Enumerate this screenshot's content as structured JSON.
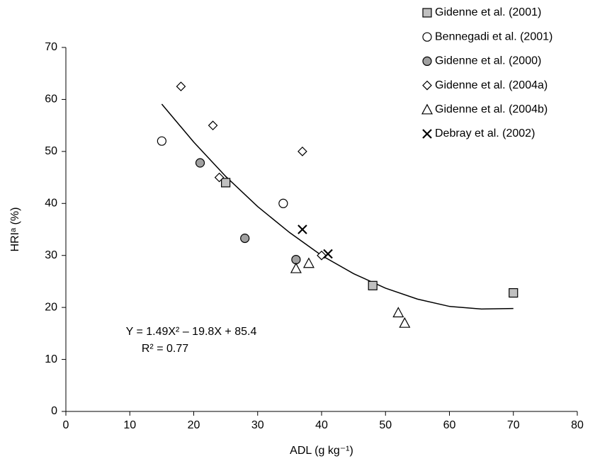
{
  "chart_data": {
    "type": "scatter",
    "xlabel": "ADL (g kg⁻¹)",
    "ylabel": "HRIᵃ (%)",
    "xlim": [
      0,
      80
    ],
    "xticks": [
      0,
      10,
      20,
      30,
      40,
      50,
      60,
      70,
      80
    ],
    "ylim": [
      0,
      70
    ],
    "yticks": [
      0,
      10,
      20,
      30,
      40,
      50,
      60,
      70
    ],
    "grid": false,
    "legend": "upper right",
    "series": [
      {
        "name": "Gidenne et al. (2001)",
        "marker": "square",
        "color": "#c0c0c0",
        "x": [
          25,
          48,
          70
        ],
        "values": [
          44,
          24.2,
          22.8
        ]
      },
      {
        "name": "Bennegadi et al. (2001)",
        "marker": "circle",
        "color": "#ffffff",
        "x": [
          15,
          34
        ],
        "values": [
          52,
          40
        ]
      },
      {
        "name": "Gidenne et al. (2000)",
        "marker": "circle",
        "color": "#a0a0a0",
        "x": [
          21,
          28,
          36
        ],
        "values": [
          47.8,
          33.3,
          29.2
        ]
      },
      {
        "name": "Gidenne et al. (2004a)",
        "marker": "diamond",
        "color": "#ffffff",
        "x": [
          18,
          23,
          24,
          37,
          40
        ],
        "values": [
          62.5,
          55,
          45,
          50,
          30
        ]
      },
      {
        "name": "Gidenne et al. (2004b)",
        "marker": "triangle",
        "color": "#ffffff",
        "x": [
          36,
          38,
          52,
          53
        ],
        "values": [
          27.5,
          28.5,
          19,
          17
        ]
      },
      {
        "name": "Debray et al. (2002)",
        "marker": "cross",
        "color": "#000000",
        "x": [
          37,
          41
        ],
        "values": [
          35,
          30.3
        ]
      }
    ],
    "trendline": {
      "color": "#000000",
      "x": [
        15,
        20,
        25,
        30,
        35,
        40,
        45,
        50,
        55,
        60,
        65,
        70
      ],
      "values": [
        59.1,
        51.8,
        45.2,
        39.4,
        34.4,
        30.0,
        26.5,
        23.7,
        21.6,
        20.2,
        19.7,
        19.8
      ]
    },
    "annotations": [
      "Y = 1.49X² – 19.8X + 85.4",
      "R² = 0.77"
    ]
  }
}
